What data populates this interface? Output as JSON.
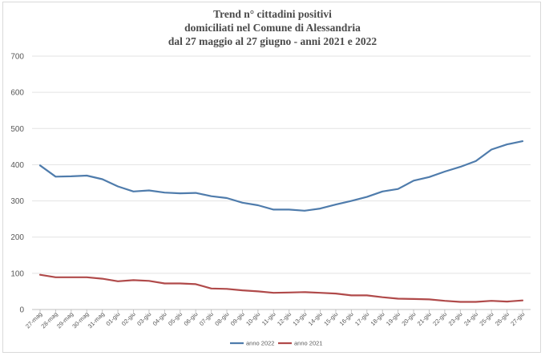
{
  "chart_data": {
    "type": "line",
    "title_lines": [
      "Trend n° cittadini positivi",
      "domiciliati nel Comune di Alessandria",
      "dal 27 maggio al 27 giugno - anni 2021 e 2022"
    ],
    "xlabel": "",
    "ylabel": "",
    "ylim": [
      0,
      700
    ],
    "yticks": [
      0,
      100,
      200,
      300,
      400,
      500,
      600,
      700
    ],
    "grid": true,
    "legend_position": "bottom",
    "categories": [
      "27-mag",
      "28-mag",
      "29-mag",
      "30-mag",
      "31-mag",
      "01-giu",
      "02-giu",
      "03-giu",
      "04-giu",
      "05-giu",
      "06-giu",
      "07-giu",
      "08-giu",
      "09-giu",
      "10-giu",
      "11-giu",
      "12-giu",
      "13-giu",
      "14-giu",
      "15-giu",
      "16-giu",
      "17-giu",
      "18-giu",
      "19-giu",
      "20-giu",
      "21-giu",
      "22-giu",
      "23-giu",
      "24-giu",
      "25-giu",
      "26-giu",
      "27-giu"
    ],
    "series": [
      {
        "name": "anno 2022",
        "color": "#4f7cac",
        "values": [
          398,
          367,
          368,
          370,
          360,
          340,
          326,
          329,
          323,
          321,
          322,
          313,
          308,
          295,
          288,
          276,
          276,
          273,
          279,
          290,
          300,
          311,
          326,
          333,
          356,
          366,
          381,
          394,
          410,
          442,
          456,
          465
        ]
      },
      {
        "name": "anno 2021",
        "color": "#b04a4a",
        "values": [
          96,
          89,
          89,
          89,
          85,
          78,
          81,
          79,
          72,
          72,
          70,
          58,
          57,
          53,
          50,
          46,
          47,
          48,
          46,
          44,
          39,
          39,
          34,
          30,
          29,
          28,
          24,
          21,
          21,
          24,
          22,
          25
        ]
      }
    ]
  }
}
